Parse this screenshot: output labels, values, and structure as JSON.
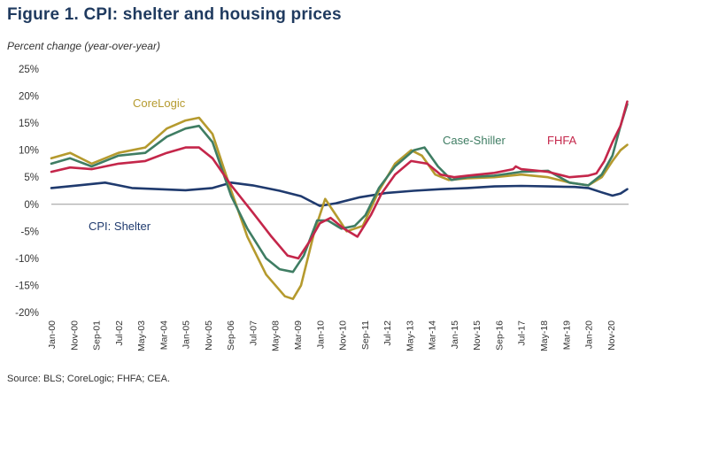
{
  "figure": {
    "title": "Figure 1. CPI: shelter and housing prices",
    "subtitle": "Percent change (year-over-year)",
    "source": "Source: BLS; CoreLogic; FHFA; CEA."
  },
  "chart_data": {
    "type": "line",
    "title": "Figure 1. CPI: shelter and housing prices",
    "ylabel": "Percent change (year-over-year)",
    "xlabel": "",
    "ylim": [
      -20,
      25
    ],
    "y_ticks": [
      25,
      20,
      15,
      10,
      5,
      0,
      -5,
      -10,
      -15,
      -20
    ],
    "y_tick_labels": [
      "25%",
      "20%",
      "15%",
      "10%",
      "5%",
      "0%",
      "-5%",
      "-10%",
      "-15%",
      "-20%"
    ],
    "x_range": [
      2000.0,
      2021.5
    ],
    "x_ticks": [
      {
        "label": "Jan-00",
        "t": 2000.0
      },
      {
        "label": "Nov-00",
        "t": 2000.833
      },
      {
        "label": "Sep-01",
        "t": 2001.667
      },
      {
        "label": "Jul-02",
        "t": 2002.5
      },
      {
        "label": "May-03",
        "t": 2003.333
      },
      {
        "label": "Mar-04",
        "t": 2004.167
      },
      {
        "label": "Jan-05",
        "t": 2005.0
      },
      {
        "label": "Nov-05",
        "t": 2005.833
      },
      {
        "label": "Sep-06",
        "t": 2006.667
      },
      {
        "label": "Jul-07",
        "t": 2007.5
      },
      {
        "label": "May-08",
        "t": 2008.333
      },
      {
        "label": "Mar-09",
        "t": 2009.167
      },
      {
        "label": "Jan-10",
        "t": 2010.0
      },
      {
        "label": "Nov-10",
        "t": 2010.833
      },
      {
        "label": "Sep-11",
        "t": 2011.667
      },
      {
        "label": "Jul-12",
        "t": 2012.5
      },
      {
        "label": "May-13",
        "t": 2013.333
      },
      {
        "label": "Mar-14",
        "t": 2014.167
      },
      {
        "label": "Jan-15",
        "t": 2015.0
      },
      {
        "label": "Nov-15",
        "t": 2015.833
      },
      {
        "label": "Sep-16",
        "t": 2016.667
      },
      {
        "label": "Jul-17",
        "t": 2017.5
      },
      {
        "label": "May-18",
        "t": 2018.333
      },
      {
        "label": "Mar-19",
        "t": 2019.167
      },
      {
        "label": "Jan-20",
        "t": 2020.0
      },
      {
        "label": "Nov-20",
        "t": 2020.833
      }
    ],
    "series": [
      {
        "name": "CPI: Shelter",
        "color": "#1f3a6e",
        "x": [
          2000.0,
          2001.0,
          2002.0,
          2003.0,
          2004.0,
          2005.0,
          2006.0,
          2006.7,
          2007.5,
          2008.5,
          2009.3,
          2010.0,
          2010.6,
          2011.5,
          2012.5,
          2013.5,
          2014.5,
          2015.5,
          2016.5,
          2017.5,
          2018.5,
          2019.5,
          2020.0,
          2020.5,
          2020.9,
          2021.2,
          2021.45
        ],
        "values": [
          3.0,
          3.5,
          4.0,
          3.0,
          2.8,
          2.6,
          3.0,
          4.0,
          3.5,
          2.5,
          1.5,
          -0.3,
          0.2,
          1.3,
          2.1,
          2.5,
          2.8,
          3.0,
          3.3,
          3.4,
          3.3,
          3.2,
          3.0,
          2.2,
          1.6,
          2.0,
          2.8
        ]
      },
      {
        "name": "CoreLogic",
        "color": "#b59a2e",
        "x": [
          2000.0,
          2000.7,
          2001.5,
          2002.5,
          2003.5,
          2004.3,
          2005.0,
          2005.5,
          2006.0,
          2006.7,
          2007.3,
          2008.0,
          2008.7,
          2009.0,
          2009.3,
          2009.8,
          2010.2,
          2010.6,
          2011.0,
          2011.6,
          2012.2,
          2012.8,
          2013.4,
          2013.8,
          2014.3,
          2014.8,
          2015.5,
          2016.5,
          2017.5,
          2018.5,
          2019.3,
          2020.0,
          2020.5,
          2020.9,
          2021.2,
          2021.45
        ],
        "values": [
          8.5,
          9.5,
          7.5,
          9.5,
          10.5,
          14.0,
          15.5,
          16.0,
          13.0,
          2.5,
          -6.0,
          -13.0,
          -17.0,
          -17.5,
          -15.0,
          -5.0,
          1.0,
          -2.0,
          -5.0,
          -4.0,
          2.5,
          7.5,
          10.0,
          9.0,
          5.5,
          4.5,
          4.8,
          5.0,
          5.5,
          5.0,
          4.0,
          3.5,
          5.0,
          8.0,
          10.0,
          11.0
        ]
      },
      {
        "name": "Case-Shiller",
        "color": "#3f7d63",
        "x": [
          2000.0,
          2000.7,
          2001.5,
          2002.5,
          2003.5,
          2004.3,
          2005.0,
          2005.5,
          2006.0,
          2006.7,
          2007.3,
          2008.0,
          2008.5,
          2009.0,
          2009.4,
          2009.9,
          2010.3,
          2010.8,
          2011.3,
          2011.7,
          2012.2,
          2012.8,
          2013.5,
          2013.9,
          2014.4,
          2014.9,
          2015.5,
          2016.5,
          2017.5,
          2018.5,
          2019.3,
          2020.0,
          2020.5,
          2020.9,
          2021.2,
          2021.45
        ],
        "values": [
          7.5,
          8.5,
          7.0,
          9.0,
          9.5,
          12.5,
          14.0,
          14.5,
          11.5,
          1.5,
          -4.5,
          -10.0,
          -12.0,
          -12.5,
          -9.5,
          -3.0,
          -3.0,
          -4.5,
          -4.0,
          -2.0,
          3.0,
          7.0,
          10.0,
          10.5,
          7.0,
          4.5,
          5.0,
          5.3,
          6.0,
          6.2,
          4.0,
          3.5,
          5.5,
          9.0,
          14.5,
          18.5
        ]
      },
      {
        "name": "FHFA",
        "color": "#c4264a",
        "x": [
          2000.0,
          2000.7,
          2001.5,
          2002.5,
          2003.5,
          2004.3,
          2005.0,
          2005.5,
          2006.0,
          2006.7,
          2007.5,
          2008.2,
          2008.8,
          2009.2,
          2009.6,
          2010.0,
          2010.4,
          2010.9,
          2011.4,
          2011.9,
          2012.3,
          2012.8,
          2013.4,
          2014.0,
          2014.5,
          2015.0,
          2015.5,
          2016.5,
          2017.2,
          2017.3,
          2017.5,
          2018.5,
          2019.3,
          2020.0,
          2020.3,
          2020.6,
          2020.9,
          2021.2,
          2021.45
        ],
        "values": [
          6.0,
          6.8,
          6.5,
          7.5,
          8.0,
          9.5,
          10.5,
          10.5,
          8.5,
          3.5,
          -1.5,
          -6.0,
          -9.5,
          -10.0,
          -7.0,
          -3.5,
          -2.5,
          -4.5,
          -6.0,
          -2.0,
          2.0,
          5.5,
          8.0,
          7.5,
          5.5,
          5.0,
          5.3,
          5.8,
          6.5,
          7.0,
          6.5,
          6.0,
          5.0,
          5.3,
          5.7,
          8.0,
          11.5,
          14.5,
          19.0
        ]
      }
    ],
    "annotations": [
      {
        "text": "CoreLogic",
        "series": "CoreLogic"
      },
      {
        "text": "Case-Shiller",
        "series": "Case-Shiller"
      },
      {
        "text": "FHFA",
        "series": "FHFA"
      },
      {
        "text": "CPI: Shelter",
        "series": "CPI: Shelter"
      }
    ],
    "grid": false,
    "legend": "inline labels"
  }
}
